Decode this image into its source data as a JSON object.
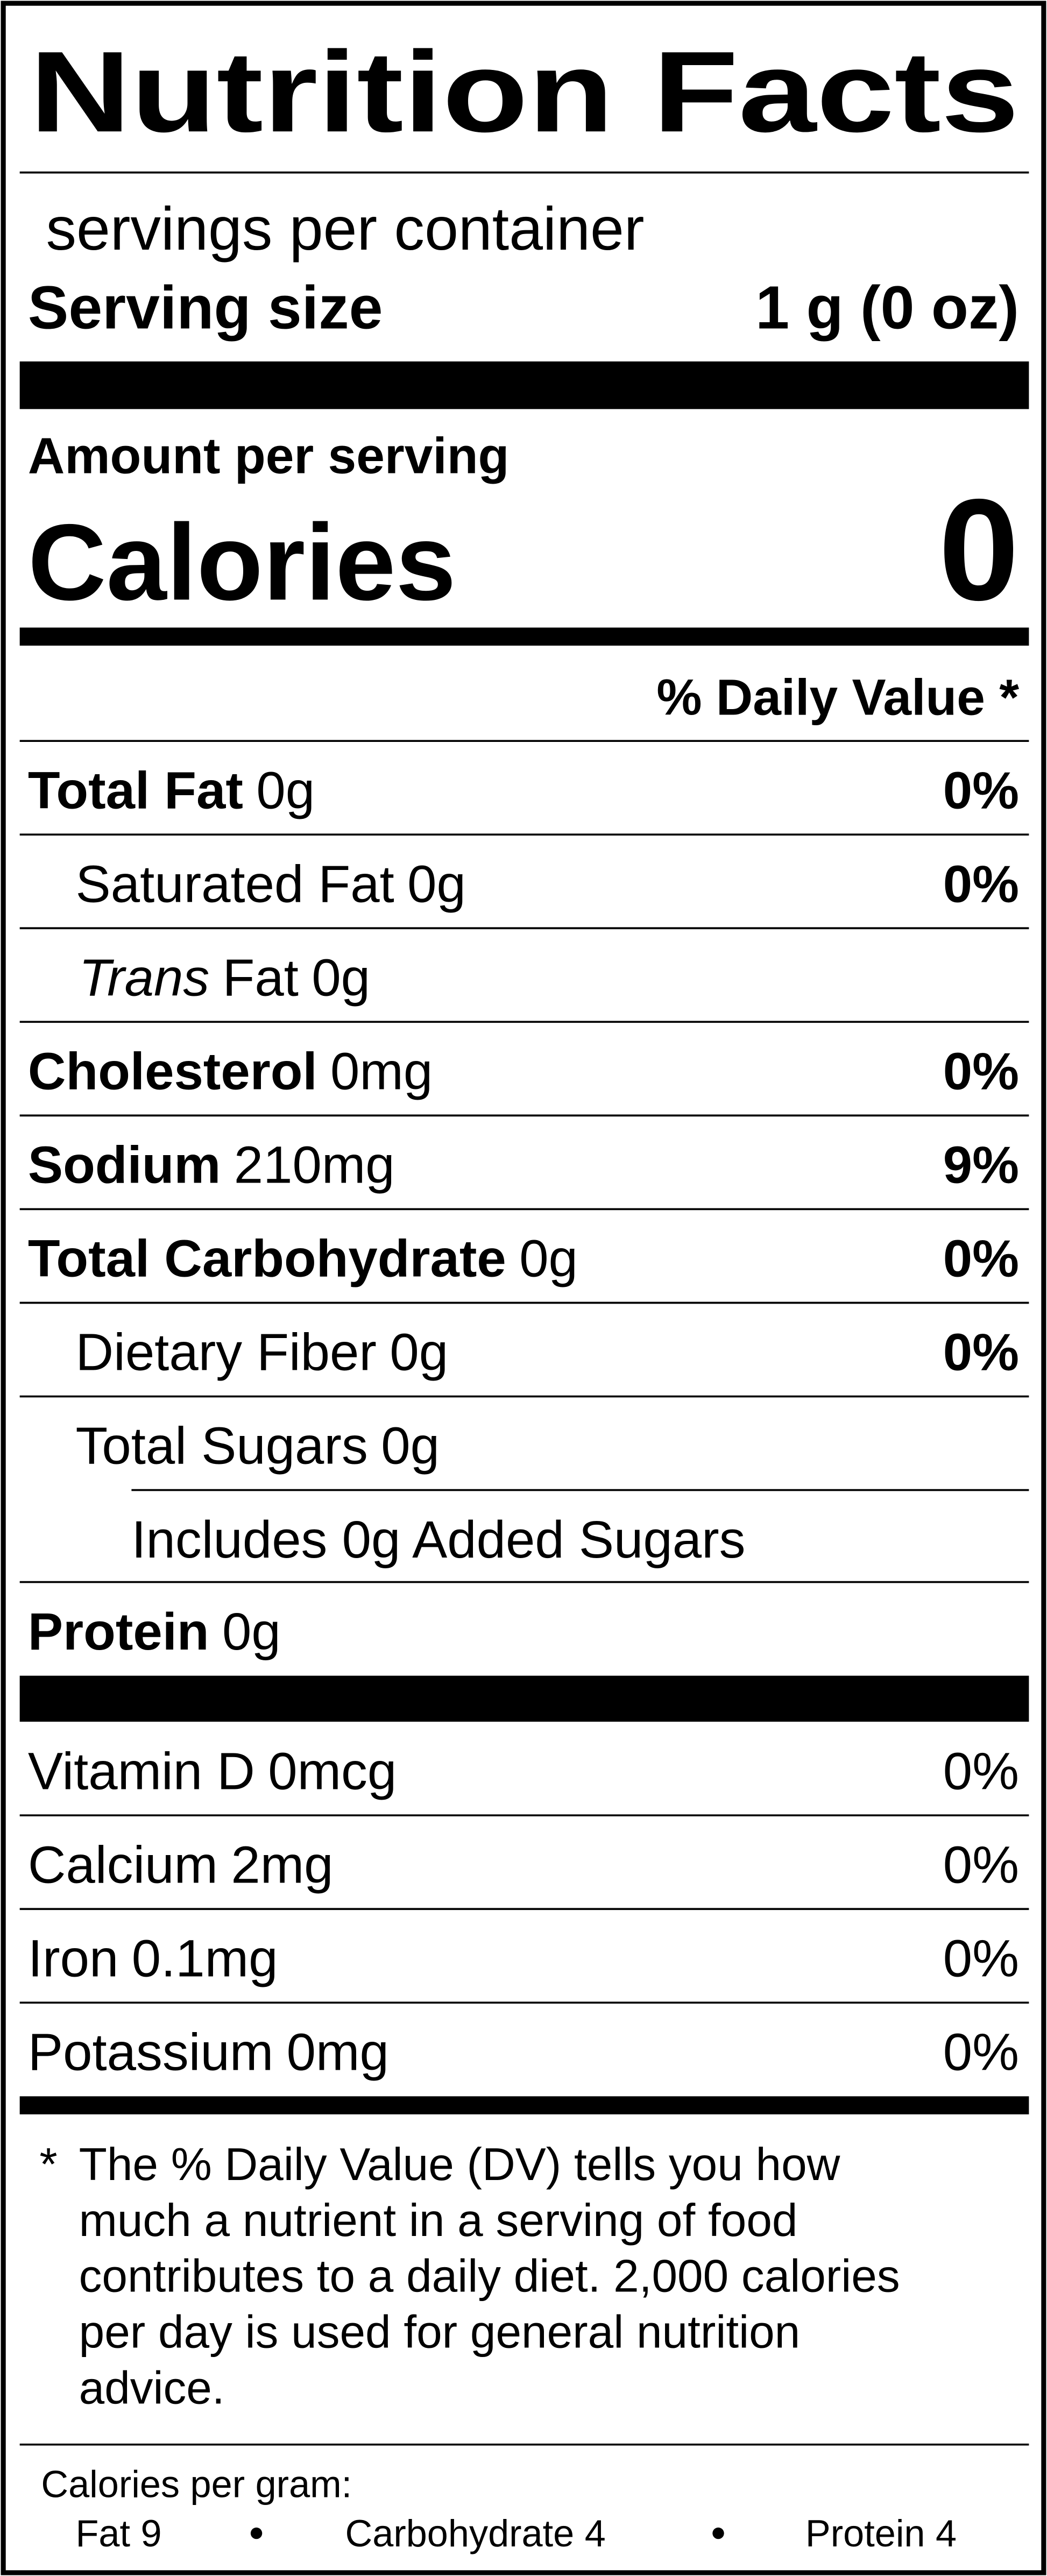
{
  "header": {
    "title": "Nutrition Facts",
    "servings": "servings per container",
    "serving_size_label": "Serving size",
    "serving_size": "1 g (0 oz)"
  },
  "calories": {
    "amount_per_serving": "Amount per serving",
    "label": "Calories",
    "value": 0
  },
  "daily_value_header": "% Daily Value *",
  "nutrients": [
    {
      "name": "Total Fat",
      "amount": "0g",
      "daily_value": "0%"
    },
    {
      "name": "Saturated Fat",
      "amount": "0g",
      "daily_value": "0%"
    },
    {
      "name_italic": "Trans",
      "name": "Fat",
      "amount": "0g"
    },
    {
      "name": "Cholesterol",
      "amount": "0mg",
      "daily_value": "0%"
    },
    {
      "name": "Sodium",
      "amount": "210mg",
      "daily_value": "9%"
    },
    {
      "name": "Total Carbohydrate",
      "amount": "0g",
      "daily_value": "0%"
    },
    {
      "name": "Dietary Fiber",
      "amount": "0g",
      "daily_value": "0%"
    },
    {
      "name": "Total Sugars",
      "amount": "0g"
    },
    {
      "text": "Includes 0g Added Sugars"
    },
    {
      "name": "Protein",
      "amount": "0g"
    }
  ],
  "vitamins": [
    {
      "name": "Vitamin D",
      "amount": "0mcg",
      "daily_value": "0%"
    },
    {
      "name": "Calcium",
      "amount": "2mg",
      "daily_value": "0%"
    },
    {
      "name": "Iron",
      "amount": "0.1mg",
      "daily_value": "0%"
    },
    {
      "name": "Potassium",
      "amount": "0mg",
      "daily_value": "0%"
    }
  ],
  "footnote": {
    "marker": "*",
    "lines": [
      "The % Daily Value (DV) tells you how",
      "much a nutrient in a serving of food",
      "contributes to a daily diet. 2,000 calories",
      "per day is used for general nutrition",
      "advice."
    ]
  },
  "calories_per_gram": {
    "label": "Calories per gram:",
    "items": [
      "Fat 9",
      "Carbohydrate 4",
      "Protein 4"
    ]
  }
}
